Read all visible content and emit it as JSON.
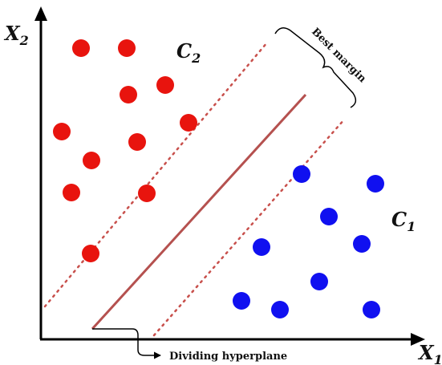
{
  "axes": {
    "x_label": "X",
    "x_sub": "1",
    "y_label": "X",
    "y_sub": "2"
  },
  "classes": {
    "c1_label": "C",
    "c1_sub": "1",
    "c2_label": "C",
    "c2_sub": "2"
  },
  "annotations": {
    "margin_label": "Best margin",
    "hyperplane_label": "Dividing hyperplane"
  },
  "colors": {
    "class_c2": "#e8140e",
    "class_c1": "#1010f0",
    "hyperplane": "#b5514f",
    "margin_dots": "#c8504c",
    "axis": "#000000"
  }
}
